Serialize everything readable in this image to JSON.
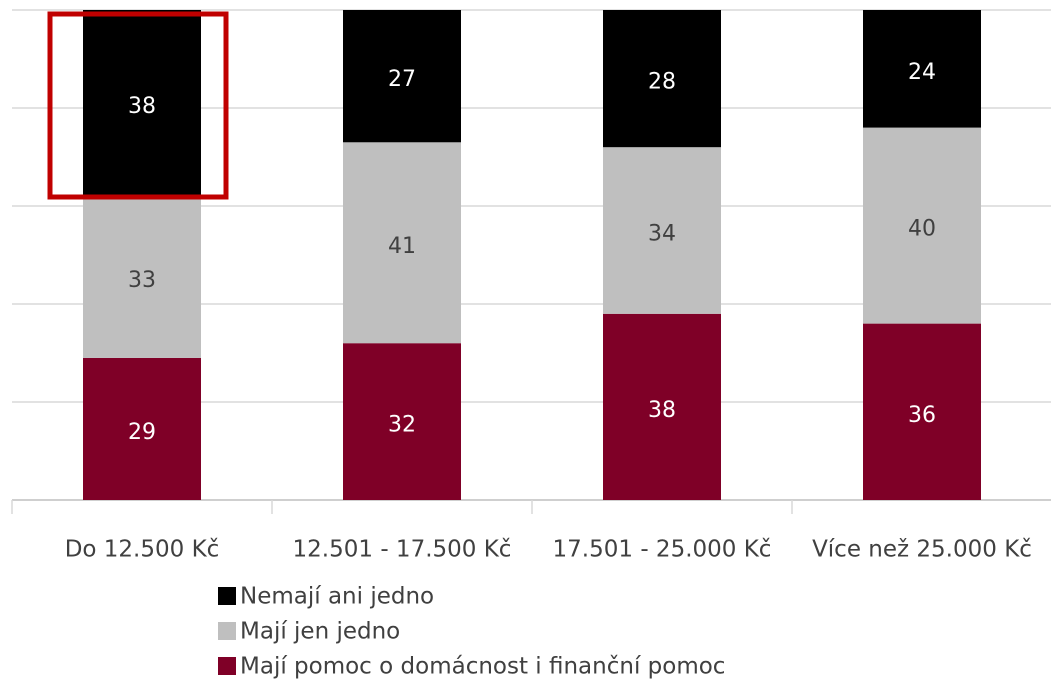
{
  "chart_data": {
    "type": "stacked_bar",
    "categories": [
      "Do 12.500 Kč",
      "12.501 - 17.500 Kč",
      "17.501 - 25.000 Kč",
      "Více než 25.000 Kč"
    ],
    "series": [
      {
        "name": "Mají pomoc o domácnost i finanční pomoc",
        "color": "#7f0027",
        "values": [
          29,
          32,
          38,
          36
        ]
      },
      {
        "name": "Mají jen jedno",
        "color": "#bfbfbf",
        "values": [
          33,
          41,
          34,
          40
        ]
      },
      {
        "name": "Nemají ani jedno",
        "color": "#000000",
        "values": [
          38,
          27,
          28,
          24
        ]
      }
    ],
    "ylim": [
      0,
      100
    ],
    "yticks": [
      0,
      20,
      40,
      60,
      80,
      100
    ],
    "grid": true,
    "legend": "bottom"
  }
}
